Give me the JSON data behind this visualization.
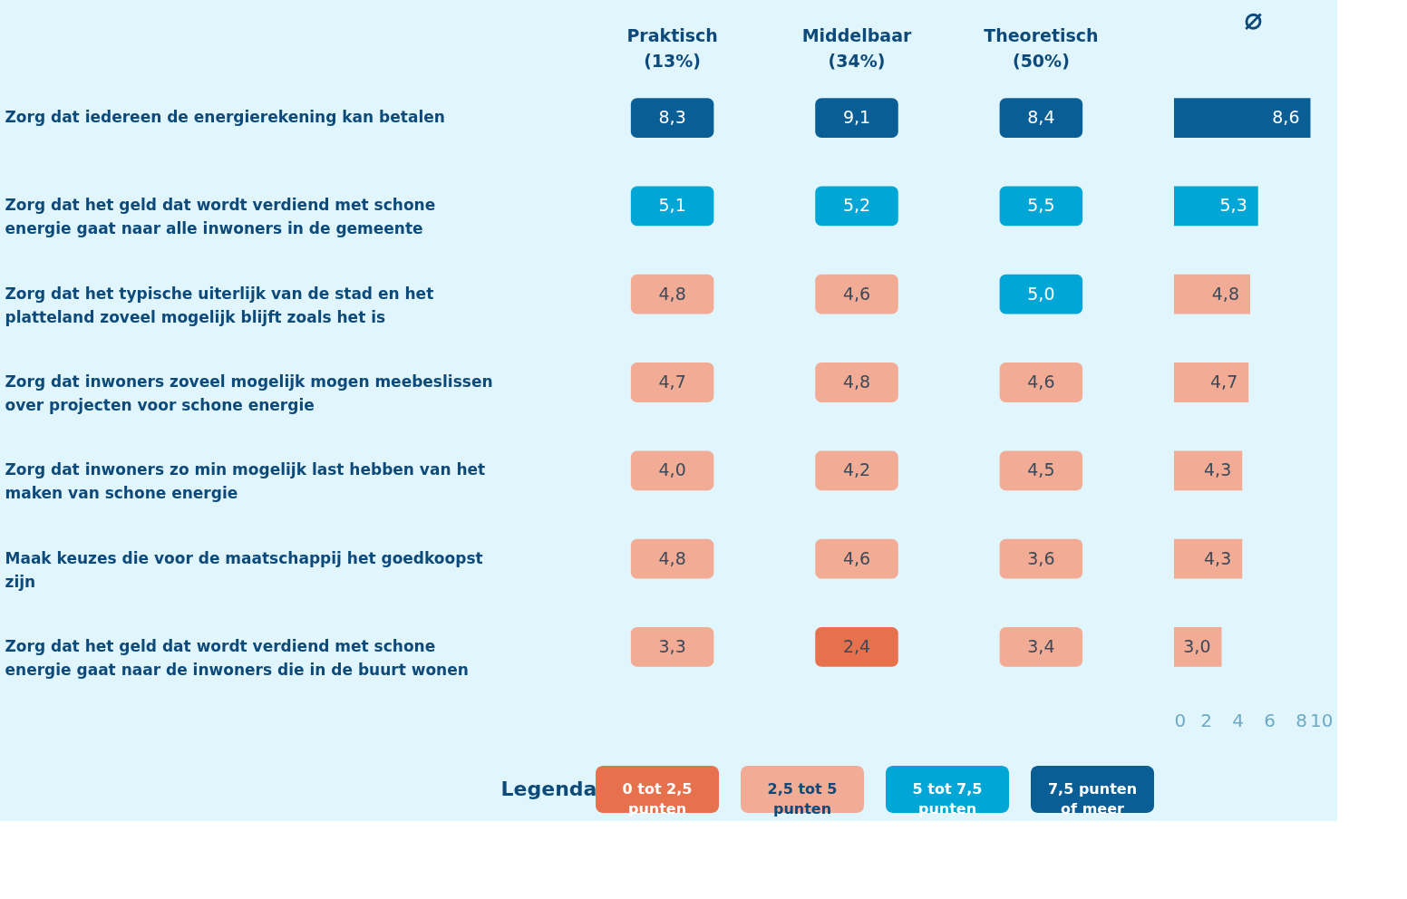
{
  "chart_data": [
    {
      "type": "heatmap",
      "categories": [
        "Praktisch (13%)",
        "Middelbaar (34%)",
        "Theoretisch (50%)"
      ],
      "y_categories": [
        "Zorg dat iedereen de energierekening kan betalen",
        "Zorg dat het geld dat wordt verdiend met schone energie gaat naar alle inwoners in de gemeente",
        "Zorg dat het typische uiterlijk van de stad en het platteland zoveel mogelijk blijft zoals het is",
        "Zorg dat inwoners zoveel mogelijk mogen meebeslissen over projecten voor schone energie",
        "Zorg dat inwoners zo min mogelijk last hebben van het maken van schone energie",
        "Maak keuzes die voor de maatschappij het goedkoopst zijn",
        "Zorg dat het geld dat wordt verdiend met schone energie gaat naar de inwoners die in de buurt wonen"
      ],
      "cells": [
        [
          8.3,
          9.1,
          8.4
        ],
        [
          5.1,
          5.2,
          5.5
        ],
        [
          4.8,
          4.6,
          5.0
        ],
        [
          4.7,
          4.8,
          4.6
        ],
        [
          4.0,
          4.2,
          4.5
        ],
        [
          4.8,
          4.6,
          3.6
        ],
        [
          3.3,
          2.4,
          3.4
        ]
      ],
      "cell_labels": [
        [
          "8,3",
          "9,1",
          "8,4"
        ],
        [
          "5,1",
          "5,2",
          "5,5"
        ],
        [
          "4,8",
          "4,6",
          "5,0"
        ],
        [
          "4,7",
          "4,8",
          "4,6"
        ],
        [
          "4,0",
          "4,2",
          "4,5"
        ],
        [
          "4,8",
          "4,6",
          "3,6"
        ],
        [
          "3,3",
          "2,4",
          "3,4"
        ]
      ],
      "data_labels": true
    },
    {
      "type": "bar",
      "orientation": "horizontal",
      "title": "⌀",
      "categories": [
        null,
        null,
        null,
        null,
        null,
        null,
        null
      ],
      "values": [
        8.6,
        5.3,
        4.8,
        4.7,
        4.3,
        4.3,
        3.0
      ],
      "colors": [
        "#0a5e96",
        "#00a6d6",
        "#f2ab95",
        "#f2ab95",
        "#f2ab95",
        "#f2ab95",
        "#f2ab95"
      ],
      "value_labels": [
        "8,6",
        "5,3",
        "4,8",
        "4,7",
        "4,3",
        "4,3",
        "3,0"
      ],
      "xlim": [
        0,
        10
      ],
      "xticks": [
        0,
        2,
        4,
        6,
        8,
        10
      ],
      "grid": false,
      "data_labels": true
    },
    {
      "type": "other",
      "title": "Legenda",
      "categories": [
        "0 tot 2,5 punten",
        "2,5 tot 5 punten",
        "5 tot 7,5 punten",
        "7,5 punten of meer"
      ],
      "colors": [
        "#e8714d",
        "#f2ab95",
        "#00a6d6",
        "#0a5e96"
      ]
    }
  ]
}
